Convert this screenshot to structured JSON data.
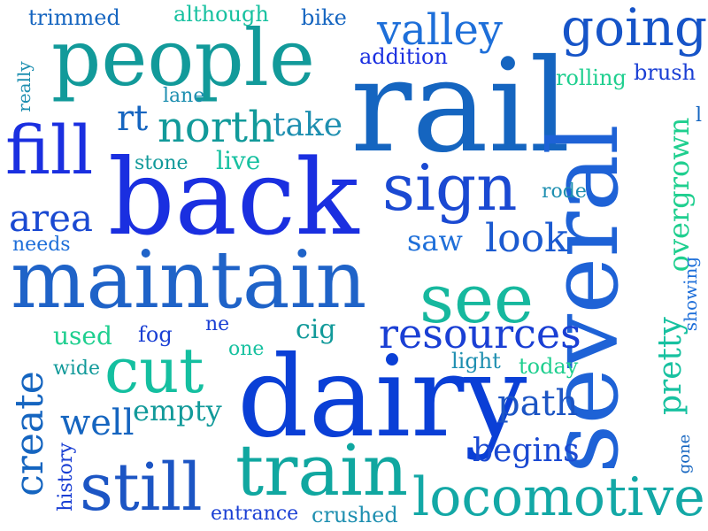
{
  "words": {
    "rail": "rail",
    "several": "several",
    "back": "back",
    "dairy": "dairy",
    "maintain": "maintain",
    "people": "people",
    "train": "train",
    "still": "still",
    "cut": "cut",
    "sign": "sign",
    "see": "see",
    "locomotive": "locomotive",
    "fill": "fill",
    "going": "going",
    "valley": "valley",
    "overgrown": "overgrown",
    "resources": "resources",
    "create": "create",
    "north": "north",
    "look": "look",
    "area": "area",
    "pretty": "pretty",
    "path": "path",
    "saw": "saw",
    "well": "well",
    "empty": "empty",
    "take": "take",
    "begins": "begins",
    "rt": "rt",
    "cig": "cig",
    "used": "used",
    "live": "live",
    "light": "light",
    "today": "today",
    "crushed": "crushed",
    "entrance": "entrance",
    "trimmed": "trimmed",
    "although": "although",
    "bike": "bike",
    "addition": "addition",
    "rolling": "rolling",
    "brush": "brush",
    "lane": "lane",
    "stone": "stone",
    "rode": "rode",
    "needs": "needs",
    "wide": "wide",
    "fog": "fog",
    "ne": "ne",
    "one": "one",
    "showing": "showing",
    "gone": "gone",
    "history": "history",
    "really": "really",
    "l": "l"
  },
  "colors": {
    "royal_blue": "#1a2fe0",
    "deep_blue": "#0a3fd6",
    "medium_blue": "#1565c0",
    "azure": "#1e6fd9",
    "steel_blue": "#2b6cb0",
    "teal": "#0fa3a3",
    "aqua_green": "#17c1a0",
    "sea_green": "#1fcf8f"
  }
}
